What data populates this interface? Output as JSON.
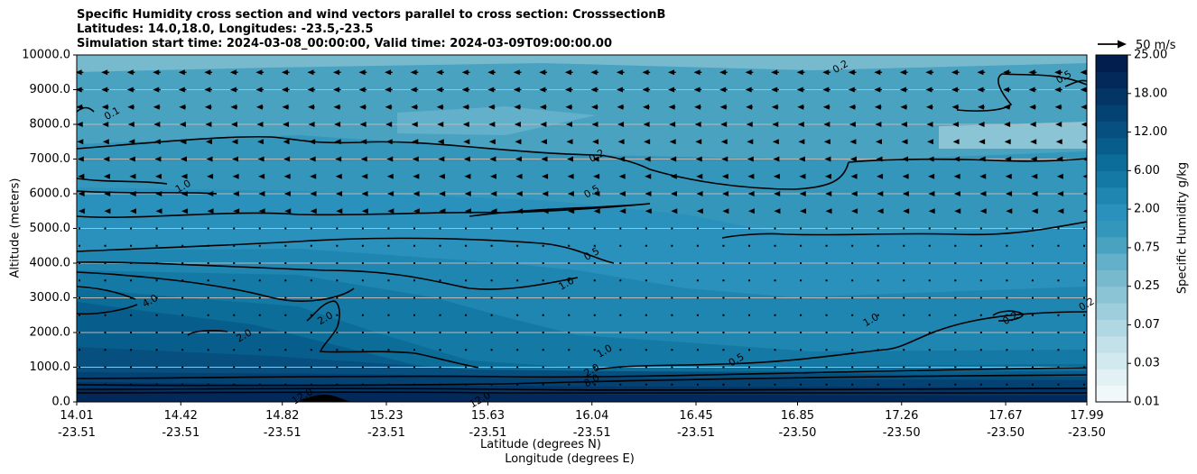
{
  "title_lines": [
    "Specific Humidity cross section and wind vectors parallel to cross section: CrosssectionB",
    "Latitudes: 14.0,18.0, Longitudes: -23.5,-23.5",
    "Simulation start time: 2024-03-08_00:00:00, Valid time: 2024-03-09T09:00:00.00"
  ],
  "chart_data": {
    "type": "heatmap",
    "variable": "Specific Humidity",
    "ylabel": "Altitude (meters)",
    "xlabel_lines": [
      "Latitude (degrees N)",
      "Longitude (degrees E)"
    ],
    "ylim": [
      0,
      10000
    ],
    "yticks": [
      "0.0",
      "1000.0",
      "2000.0",
      "3000.0",
      "4000.0",
      "5000.0",
      "6000.0",
      "7000.0",
      "8000.0",
      "9000.0",
      "10000.0"
    ],
    "xticks": [
      {
        "lat": "14.01",
        "lon": "-23.51"
      },
      {
        "lat": "14.42",
        "lon": "-23.51"
      },
      {
        "lat": "14.82",
        "lon": "-23.51"
      },
      {
        "lat": "15.23",
        "lon": "-23.51"
      },
      {
        "lat": "15.63",
        "lon": "-23.51"
      },
      {
        "lat": "16.04",
        "lon": "-23.51"
      },
      {
        "lat": "16.45",
        "lon": "-23.51"
      },
      {
        "lat": "16.85",
        "lon": "-23.50"
      },
      {
        "lat": "17.26",
        "lon": "-23.50"
      },
      {
        "lat": "17.67",
        "lon": "-23.50"
      },
      {
        "lat": "17.99",
        "lon": "-23.50"
      }
    ],
    "grid": "horizontal",
    "colorbar": {
      "label": "Specific Humidity g/kg",
      "levels": [
        0.01,
        0.02,
        0.03,
        0.05,
        0.07,
        0.1,
        0.15,
        0.2,
        0.25,
        0.3,
        0.5,
        0.75,
        1.0,
        1.5,
        2.0,
        3.0,
        4.0,
        6.0,
        8.0,
        12.0,
        18.0,
        25.0
      ],
      "tick_labels": [
        "0.01",
        "0.03",
        "0.07",
        "0.25",
        "0.75",
        "2.00",
        "6.00",
        "12.00",
        "18.00",
        "25.00"
      ],
      "colors": [
        "#ffffff",
        "#f1f8fa",
        "#e2f1f4",
        "#d2e9ef",
        "#c2e1e9",
        "#b0d8e2",
        "#9ecedc",
        "#8bc4d5",
        "#77bace",
        "#62b0c9",
        "#4aa2c1",
        "#3496ba",
        "#2a91bc",
        "#1f85b1",
        "#1479a5",
        "#0b6d98",
        "#075e8c",
        "#064f7f",
        "#044273",
        "#033567",
        "#02295a",
        "#011e4e"
      ]
    },
    "layers": [
      {
        "name": "surface",
        "z_top_m": 450,
        "q_gkg": 14.0
      },
      {
        "name": "boundary_layer",
        "z_top_m": 800,
        "q_gkg": 9.0
      },
      {
        "name": "moist_layer_south",
        "z_top_m": 3500,
        "q_gkg": 3.0
      },
      {
        "name": "moist_layer_north",
        "z_top_m": 1300,
        "q_gkg": 2.0
      },
      {
        "name": "mid_level",
        "z_top_m": 5000,
        "q_gkg": 1.0
      },
      {
        "name": "upper_mid",
        "z_top_m": 7200,
        "q_gkg": 0.4
      },
      {
        "name": "upper",
        "z_top_m": 10000,
        "q_gkg": 0.15
      }
    ],
    "contour_labels": [
      {
        "text": "0.1",
        "lat": 14.15,
        "z": 8300
      },
      {
        "text": "0.2",
        "lat": 16.06,
        "z": 7080
      },
      {
        "text": "0.2",
        "lat": 17.02,
        "z": 9650
      },
      {
        "text": "0.5",
        "lat": 17.9,
        "z": 9350
      },
      {
        "text": "1.0",
        "lat": 14.43,
        "z": 6200
      },
      {
        "text": "0.5",
        "lat": 16.04,
        "z": 6050
      },
      {
        "text": "0.5",
        "lat": 16.04,
        "z": 4250
      },
      {
        "text": "1.0",
        "lat": 15.94,
        "z": 3400
      },
      {
        "text": "4.0",
        "lat": 14.3,
        "z": 2900
      },
      {
        "text": "2.0",
        "lat": 14.99,
        "z": 2400
      },
      {
        "text": "2.0",
        "lat": 14.67,
        "z": 1900
      },
      {
        "text": "1.0",
        "lat": 16.09,
        "z": 1450
      },
      {
        "text": "1.0",
        "lat": 17.14,
        "z": 2350
      },
      {
        "text": "0.2",
        "lat": 17.69,
        "z": 2400
      },
      {
        "text": "0.2",
        "lat": 17.99,
        "z": 2800
      },
      {
        "text": "0.5",
        "lat": 16.61,
        "z": 1200
      },
      {
        "text": "2.0",
        "lat": 16.04,
        "z": 900
      },
      {
        "text": "8.0",
        "lat": 16.04,
        "z": 600
      },
      {
        "text": "12.0",
        "lat": 14.9,
        "z": 150
      },
      {
        "text": "12.0",
        "lat": 15.6,
        "z": 50
      }
    ],
    "wind": {
      "reference_label": "50 m/s",
      "reference_speed_ms": 50,
      "component": "parallel to cross section",
      "profile": [
        {
          "z": 9500,
          "u": -8
        },
        {
          "z": 9000,
          "u": -8
        },
        {
          "z": 8500,
          "u": -7
        },
        {
          "z": 8000,
          "u": -6
        },
        {
          "z": 7500,
          "u": -5
        },
        {
          "z": 7000,
          "u": -4
        },
        {
          "z": 6500,
          "u": -3
        },
        {
          "z": 6000,
          "u": -2.5
        },
        {
          "z": 5500,
          "u": -2
        },
        {
          "z": 5000,
          "u": -1.5
        },
        {
          "z": 4500,
          "u": -1
        },
        {
          "z": 4000,
          "u": -1
        },
        {
          "z": 3500,
          "u": -0.8
        },
        {
          "z": 3000,
          "u": -0.6
        },
        {
          "z": 2500,
          "u": -0.5
        },
        {
          "z": 2000,
          "u": -0.4
        },
        {
          "z": 1500,
          "u": -0.3
        },
        {
          "z": 1000,
          "u": 0.6
        },
        {
          "z": 500,
          "u": 1.0
        }
      ]
    }
  }
}
